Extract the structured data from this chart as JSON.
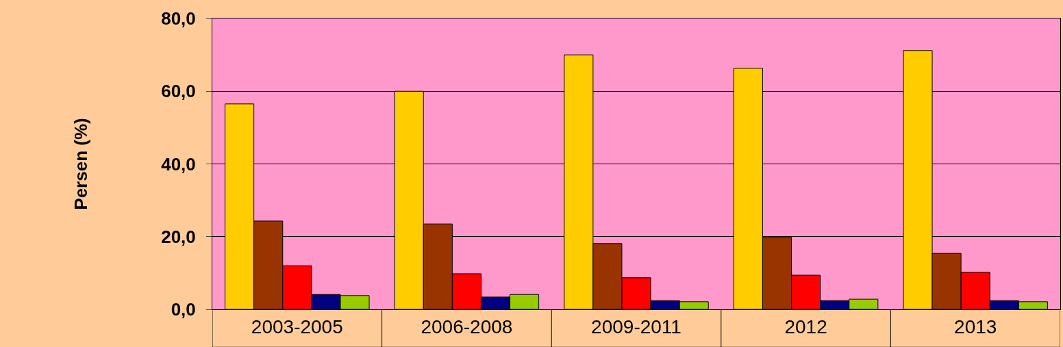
{
  "chart_data": {
    "type": "bar",
    "ylabel": "Persen (%)",
    "categories": [
      "2003-2005",
      "2006-2008",
      "2009-2011",
      "2012",
      "2013"
    ],
    "series": [
      {
        "color": "#ffcc00",
        "values": [
          56.5,
          60.0,
          70.0,
          66.3,
          71.2
        ]
      },
      {
        "color": "#993300",
        "values": [
          24.3,
          23.5,
          18.1,
          19.8,
          15.4
        ]
      },
      {
        "color": "#ff0000",
        "values": [
          12.0,
          9.8,
          8.7,
          9.4,
          10.2
        ]
      },
      {
        "color": "#000080",
        "values": [
          4.1,
          3.4,
          2.4,
          2.4,
          2.4
        ]
      },
      {
        "color": "#99cc00",
        "values": [
          3.8,
          4.1,
          2.1,
          2.8,
          2.1
        ]
      }
    ],
    "ylim": [
      0,
      80
    ],
    "yticks": [
      {
        "value": 0,
        "label": "0,0"
      },
      {
        "value": 20,
        "label": "20,0"
      },
      {
        "value": 40,
        "label": "40,0"
      },
      {
        "value": 60,
        "label": "60,0"
      },
      {
        "value": 80,
        "label": "80,0"
      }
    ],
    "grid": "y",
    "legend": false
  }
}
